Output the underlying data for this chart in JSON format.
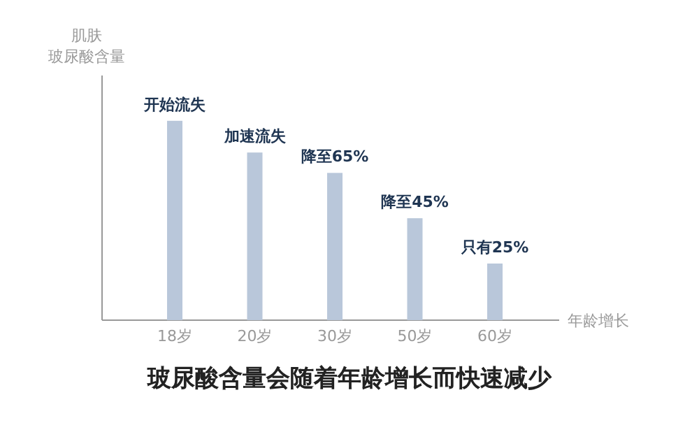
{
  "chart_data": {
    "type": "bar",
    "title": "玻尿酸含量会随着年龄增长而快速减少",
    "ylabel": "肌肤玻尿酸含量",
    "xlabel": "年龄增长",
    "categories": [
      "18岁",
      "20岁",
      "30岁",
      "50岁",
      "60岁"
    ],
    "values": [
      88,
      74,
      65,
      45,
      25
    ],
    "value_labels": [
      "开始流失",
      "加速流失",
      "降至65%",
      "降至45%",
      "只有25%"
    ],
    "color": "#b9c7da",
    "ylim": [
      0,
      108
    ],
    "tick_labels": "x"
  }
}
